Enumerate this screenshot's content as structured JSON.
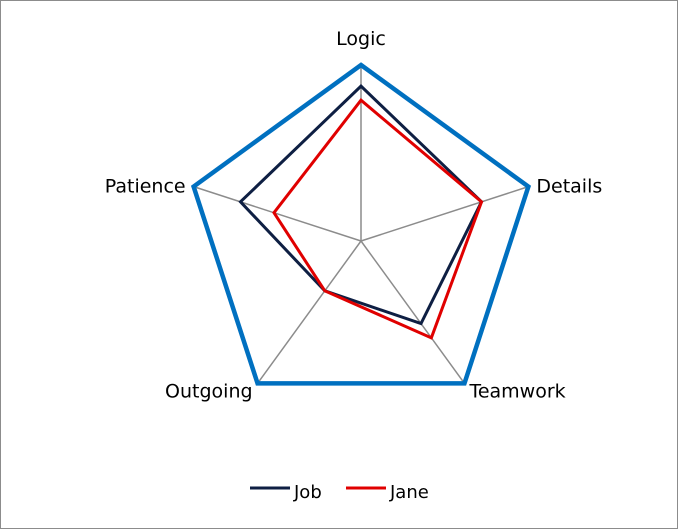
{
  "chart_data": {
    "type": "radar",
    "axes": [
      "Logic",
      "Details",
      "Teamwork",
      "Outgoing",
      "Patience"
    ],
    "range": [
      0,
      1
    ],
    "outline_color": "#0070c0",
    "spoke_color": "#8c8c8c",
    "series": [
      {
        "name": "Job",
        "color": "#0e1f43",
        "values": [
          0.88,
          0.72,
          0.58,
          0.35,
          0.72
        ]
      },
      {
        "name": "Jane",
        "color": "#e00000",
        "values": [
          0.8,
          0.72,
          0.68,
          0.35,
          0.52
        ]
      }
    ],
    "legend": {
      "position": "bottom"
    }
  }
}
